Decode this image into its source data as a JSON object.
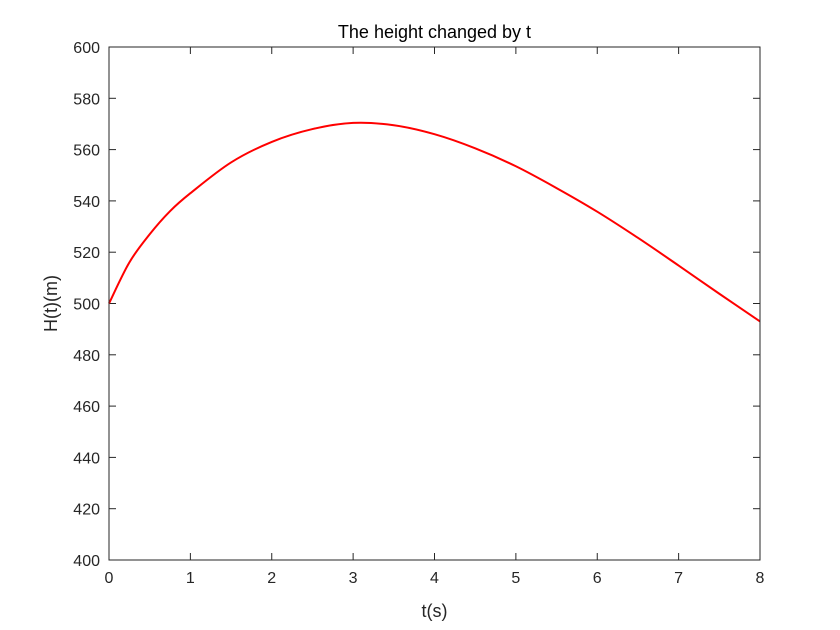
{
  "chart_data": {
    "type": "line",
    "title": "The height changed by t",
    "xlabel": "t(s)",
    "ylabel": "H(t)(m)",
    "xlim": [
      0,
      8
    ],
    "ylim": [
      400,
      600
    ],
    "xticks": [
      0,
      1,
      2,
      3,
      4,
      5,
      6,
      7,
      8
    ],
    "yticks": [
      400,
      420,
      440,
      460,
      480,
      500,
      520,
      540,
      560,
      580,
      600
    ],
    "xtick_labels": [
      "0",
      "1",
      "2",
      "3",
      "4",
      "5",
      "6",
      "7",
      "8"
    ],
    "ytick_labels": [
      "400",
      "420",
      "440",
      "460",
      "480",
      "500",
      "520",
      "540",
      "560",
      "580",
      "600"
    ],
    "grid": false,
    "box": true,
    "series": [
      {
        "color": "#ff0000",
        "x": [
          0,
          0.25,
          0.5,
          0.75,
          1,
          1.5,
          2,
          2.5,
          3,
          3.5,
          4,
          4.5,
          5,
          5.5,
          6,
          6.5,
          7,
          7.5,
          8
        ],
        "y": [
          500,
          516,
          527,
          536,
          543,
          555,
          563,
          568,
          570.4,
          569.5,
          566,
          560.5,
          553.5,
          545,
          535.8,
          525.6,
          514.8,
          503.8,
          493
        ]
      }
    ]
  }
}
